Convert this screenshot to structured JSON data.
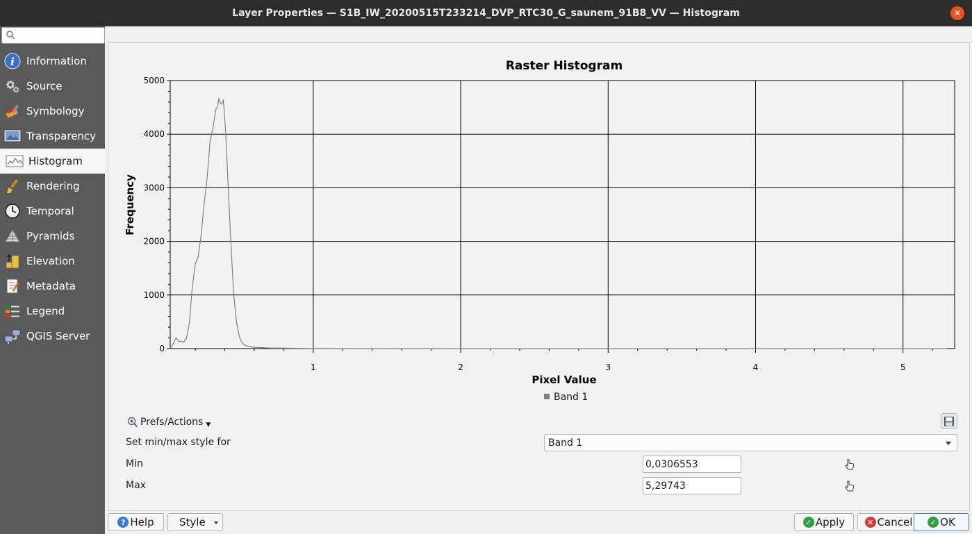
{
  "window": {
    "title": "Layer Properties — S1B_IW_20200515T233214_DVP_RTC30_G_saunem_91B8_VV — Histogram",
    "close_glyph": "✕"
  },
  "sidebar": {
    "search_placeholder": "",
    "items": [
      {
        "label": "Information",
        "icon": "information-icon"
      },
      {
        "label": "Source",
        "icon": "source-icon"
      },
      {
        "label": "Symbology",
        "icon": "symbology-icon"
      },
      {
        "label": "Transparency",
        "icon": "transparency-icon"
      },
      {
        "label": "Histogram",
        "icon": "histogram-icon",
        "active": true
      },
      {
        "label": "Rendering",
        "icon": "rendering-icon"
      },
      {
        "label": "Temporal",
        "icon": "temporal-icon"
      },
      {
        "label": "Pyramids",
        "icon": "pyramids-icon"
      },
      {
        "label": "Elevation",
        "icon": "elevation-icon"
      },
      {
        "label": "Metadata",
        "icon": "metadata-icon"
      },
      {
        "label": "Legend",
        "icon": "legend-icon"
      },
      {
        "label": "QGIS Server",
        "icon": "qgis-server-icon"
      }
    ]
  },
  "chart_data": {
    "type": "line",
    "title": "Raster Histogram",
    "xlabel": "Pixel Value",
    "ylabel": "Frequency",
    "xlim": [
      0.03,
      5.35
    ],
    "ylim": [
      0,
      5000
    ],
    "xticks": [
      1,
      2,
      3,
      4,
      5
    ],
    "yticks": [
      0,
      1000,
      2000,
      3000,
      4000,
      5000
    ],
    "grid": true,
    "legend_position": "bottom-center",
    "series": [
      {
        "name": "Band 1",
        "color": "#808080",
        "x": [
          0.03,
          0.05,
          0.07,
          0.09,
          0.1,
          0.12,
          0.14,
          0.16,
          0.18,
          0.2,
          0.22,
          0.24,
          0.26,
          0.28,
          0.3,
          0.32,
          0.34,
          0.35,
          0.36,
          0.37,
          0.38,
          0.39,
          0.4,
          0.41,
          0.42,
          0.44,
          0.46,
          0.48,
          0.5,
          0.52,
          0.54,
          0.56,
          0.6,
          0.65,
          0.7,
          0.8,
          0.9,
          1.0,
          1.5,
          2.0,
          3.0,
          4.0,
          5.3
        ],
        "y": [
          0,
          90,
          200,
          130,
          140,
          120,
          190,
          480,
          1150,
          1580,
          1720,
          2130,
          2700,
          3180,
          3860,
          4120,
          4470,
          4500,
          4660,
          4580,
          4560,
          4640,
          4300,
          3850,
          3200,
          2050,
          1020,
          480,
          210,
          95,
          60,
          40,
          25,
          18,
          12,
          8,
          5,
          3,
          1,
          0,
          0,
          0,
          0
        ]
      }
    ]
  },
  "prefs": {
    "label": "Prefs/Actions"
  },
  "form": {
    "style_label": "Set min/max style for",
    "style_value": "Band 1",
    "min_label": "Min",
    "min_value": "0,0306553",
    "max_label": "Max",
    "max_value": "5,29743"
  },
  "buttons": {
    "help": "Help",
    "style": "Style",
    "apply": "Apply",
    "cancel": "Cancel",
    "ok": "OK",
    "help_color": "#3a7bd5",
    "apply_color": "#2f9e44",
    "cancel_color": "#d33b3b",
    "ok_color": "#2f9e44"
  }
}
